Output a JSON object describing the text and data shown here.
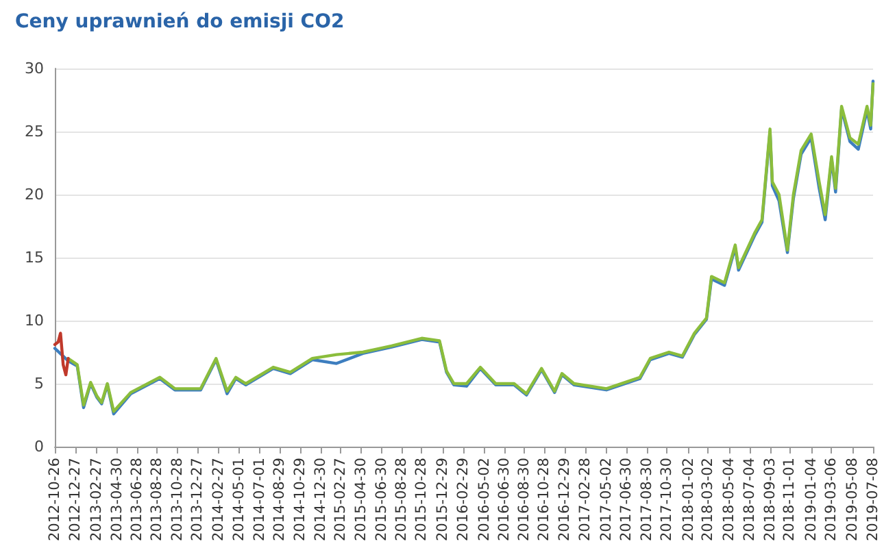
{
  "chart_data": {
    "type": "line",
    "title": "Ceny uprawnień do emisji CO2",
    "x": [
      "2012-12-05",
      "2013-01-01",
      "2013-01-20",
      "2013-02-10",
      "2013-03-01",
      "2013-03-15",
      "2013-04-01",
      "2013-04-20",
      "2013-06-10",
      "2013-09-05",
      "2013-10-20",
      "2014-01-05",
      "2014-02-20",
      "2014-03-25",
      "2014-04-20",
      "2014-05-20",
      "2014-08-10",
      "2014-09-30",
      "2014-12-05",
      "2015-02-15",
      "2015-05-05",
      "2015-07-30",
      "2015-10-28",
      "2015-12-20",
      "2016-01-10",
      "2016-02-01",
      "2016-03-10",
      "2016-04-20",
      "2016-06-05",
      "2016-07-30",
      "2016-09-05",
      "2016-10-20",
      "2016-11-28",
      "2016-12-20",
      "2017-01-25",
      "2017-05-02",
      "2017-08-10",
      "2017-09-10",
      "2017-11-05",
      "2017-12-15",
      "2018-01-20",
      "2018-02-25",
      "2018-03-12",
      "2018-04-20",
      "2018-05-22",
      "2018-06-01",
      "2018-07-20",
      "2018-08-10",
      "2018-09-03",
      "2018-09-10",
      "2018-09-30",
      "2018-10-25",
      "2018-11-12",
      "2018-12-05",
      "2019-01-04",
      "2019-01-28",
      "2019-02-15",
      "2019-03-06",
      "2019-03-18",
      "2019-04-05",
      "2019-04-30",
      "2019-05-25",
      "2019-06-20",
      "2019-07-01",
      "2019-07-08"
    ],
    "series": [
      {
        "color": "#3d7ebf",
        "x": [
          "2012-10-26",
          "2012-12-05",
          "2013-01-01",
          "2013-01-20",
          "2013-02-10",
          "2013-03-01",
          "2013-03-15",
          "2013-04-01",
          "2013-04-20",
          "2013-06-10",
          "2013-09-05",
          "2013-10-20",
          "2014-01-05",
          "2014-02-20",
          "2014-03-25",
          "2014-04-20",
          "2014-05-20",
          "2014-08-10",
          "2014-09-30",
          "2014-12-05",
          "2015-02-15",
          "2015-05-05",
          "2015-07-30",
          "2015-10-28",
          "2015-12-20",
          "2016-01-10",
          "2016-02-01",
          "2016-03-10",
          "2016-04-20",
          "2016-06-05",
          "2016-07-30",
          "2016-09-05",
          "2016-10-20",
          "2016-11-28",
          "2016-12-20",
          "2017-01-25",
          "2017-05-02",
          "2017-08-10",
          "2017-09-10",
          "2017-11-05",
          "2017-12-15",
          "2018-01-20",
          "2018-02-25",
          "2018-03-12",
          "2018-04-20",
          "2018-05-22",
          "2018-06-01",
          "2018-07-20",
          "2018-08-10",
          "2018-09-03",
          "2018-09-10",
          "2018-09-30",
          "2018-10-25",
          "2018-11-12",
          "2018-12-05",
          "2019-01-04",
          "2019-01-28",
          "2019-02-15",
          "2019-03-06",
          "2019-03-18",
          "2019-04-05",
          "2019-04-30",
          "2019-05-25",
          "2019-06-20",
          "2019-07-01",
          "2019-07-08"
        ],
        "values": [
          7.8,
          6.8,
          6.4,
          3.1,
          5.0,
          3.9,
          3.4,
          4.9,
          2.6,
          4.2,
          5.4,
          4.5,
          4.5,
          6.9,
          4.2,
          5.4,
          4.9,
          6.2,
          5.8,
          6.9,
          6.6,
          7.4,
          7.9,
          8.5,
          8.3,
          5.9,
          4.9,
          4.8,
          6.2,
          4.9,
          4.9,
          4.1,
          6.1,
          4.3,
          5.7,
          4.9,
          4.5,
          5.4,
          6.9,
          7.4,
          7.1,
          8.9,
          10.1,
          13.3,
          12.8,
          15.8,
          14.0,
          16.8,
          17.8,
          25.0,
          20.7,
          19.5,
          15.4,
          19.7,
          23.2,
          24.5,
          20.5,
          18.0,
          22.8,
          20.2,
          26.8,
          24.2,
          23.6,
          26.7,
          25.2,
          29.0
        ]
      },
      {
        "color": "#8bbd3c",
        "values": [
          7.0,
          6.5,
          3.3,
          5.1,
          4.0,
          3.5,
          5.0,
          2.8,
          4.3,
          5.5,
          4.6,
          4.6,
          7.0,
          4.4,
          5.5,
          5.0,
          6.3,
          5.9,
          7.0,
          7.3,
          7.5,
          8.0,
          8.6,
          8.4,
          6.0,
          5.0,
          5.0,
          6.3,
          5.0,
          5.0,
          4.2,
          6.2,
          4.4,
          5.8,
          5.0,
          4.6,
          5.5,
          7.0,
          7.5,
          7.2,
          9.0,
          10.2,
          13.5,
          13.0,
          16.0,
          14.2,
          17.0,
          18.0,
          25.2,
          21.0,
          20.0,
          15.6,
          20.0,
          23.5,
          24.8,
          21.0,
          18.4,
          23.0,
          20.5,
          27.0,
          24.5,
          24.0,
          27.0,
          25.5,
          28.8
        ]
      },
      {
        "color": "#c0392b",
        "x": [
          "2012-10-26",
          "2012-11-05",
          "2012-11-12",
          "2012-11-20",
          "2012-11-28",
          "2012-12-05"
        ],
        "values": [
          8.1,
          8.3,
          9.0,
          6.5,
          5.7,
          7.0
        ]
      }
    ],
    "xlim": [
      "2012-10-26",
      "2019-07-08"
    ],
    "xticks": [
      "2012-10-26",
      "2012-12-27",
      "2013-02-27",
      "2013-04-30",
      "2013-06-28",
      "2013-08-28",
      "2013-10-28",
      "2013-12-27",
      "2014-02-27",
      "2014-05-01",
      "2014-07-01",
      "2014-08-29",
      "2014-10-29",
      "2014-12-30",
      "2015-02-27",
      "2015-04-30",
      "2015-06-30",
      "2015-08-28",
      "2015-10-28",
      "2015-12-29",
      "2016-02-29",
      "2016-05-02",
      "2016-06-30",
      "2016-08-30",
      "2016-10-28",
      "2016-12-29",
      "2017-02-28",
      "2017-05-02",
      "2017-06-30",
      "2017-08-30",
      "2017-10-30",
      "2018-01-02",
      "2018-03-02",
      "2018-05-04",
      "2018-07-04",
      "2018-09-03",
      "2018-11-01",
      "2019-01-04",
      "2019-03-06",
      "2019-05-08",
      "2019-07-08"
    ],
    "ylim": [
      0,
      30
    ],
    "yticks": [
      0,
      5,
      10,
      15,
      20,
      25,
      30
    ],
    "grid": "y",
    "marker": "none",
    "line_style": "solid"
  }
}
